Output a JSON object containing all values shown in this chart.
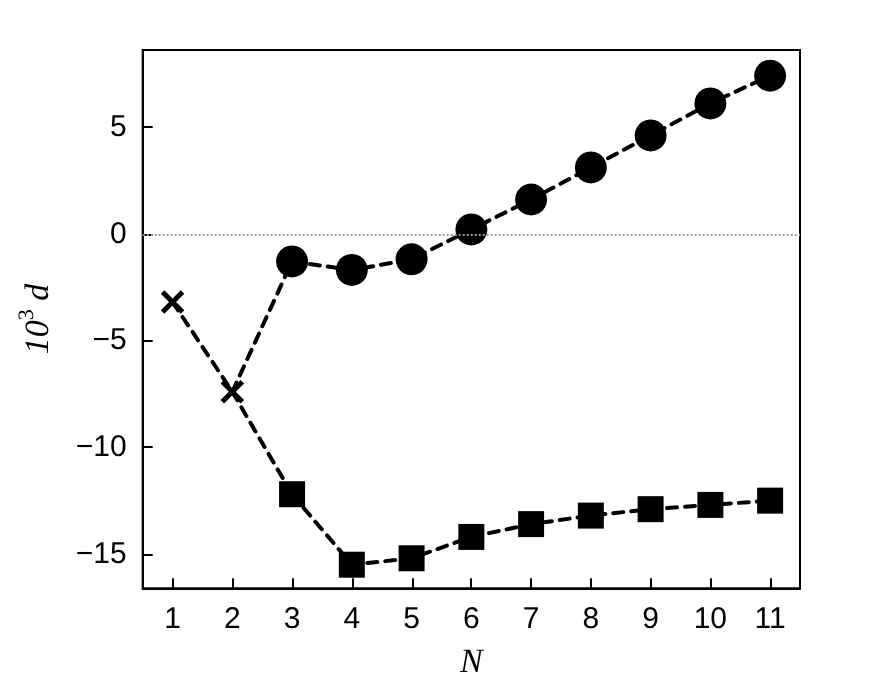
{
  "chart_data": {
    "type": "line",
    "xlabel": "N",
    "ylabel": "10$^{3}$ d",
    "xlim": [
      0.5,
      11.5
    ],
    "xticks": [
      1,
      2,
      3,
      4,
      5,
      6,
      7,
      8,
      9,
      10,
      11
    ],
    "ylim": [
      -16.6,
      8.6
    ],
    "yticks": [
      -15,
      -10,
      -5,
      0,
      5
    ],
    "grid": false,
    "line_style": "dashed",
    "ref_lines": [
      {
        "axis": "y",
        "value": 0,
        "color": "#999999",
        "line_style": "dotted"
      }
    ],
    "series": [
      {
        "color": "#000000",
        "marker": "cross",
        "x": [
          1,
          2
        ],
        "values": [
          -3.2,
          -7.4
        ]
      },
      {
        "color": "#000000",
        "x": [
          2,
          3
        ],
        "values": [
          -7.4,
          -1.3
        ]
      },
      {
        "color": "#000000",
        "x": [
          2,
          3
        ],
        "values": [
          -7.4,
          -12.2
        ]
      },
      {
        "color": "#000000",
        "marker": "circle",
        "x": [
          3,
          4,
          5,
          6,
          7,
          8,
          9,
          10,
          11
        ],
        "values": [
          -1.3,
          -1.7,
          -1.2,
          0.2,
          1.6,
          3.1,
          4.6,
          6.1,
          7.4
        ]
      },
      {
        "color": "#000000",
        "marker": "square",
        "x": [
          3,
          4,
          5,
          6,
          7,
          8,
          9,
          10,
          11
        ],
        "values": [
          -12.2,
          -15.5,
          -15.2,
          -14.2,
          -13.6,
          -13.2,
          -12.9,
          -12.7,
          -12.5
        ]
      }
    ]
  }
}
